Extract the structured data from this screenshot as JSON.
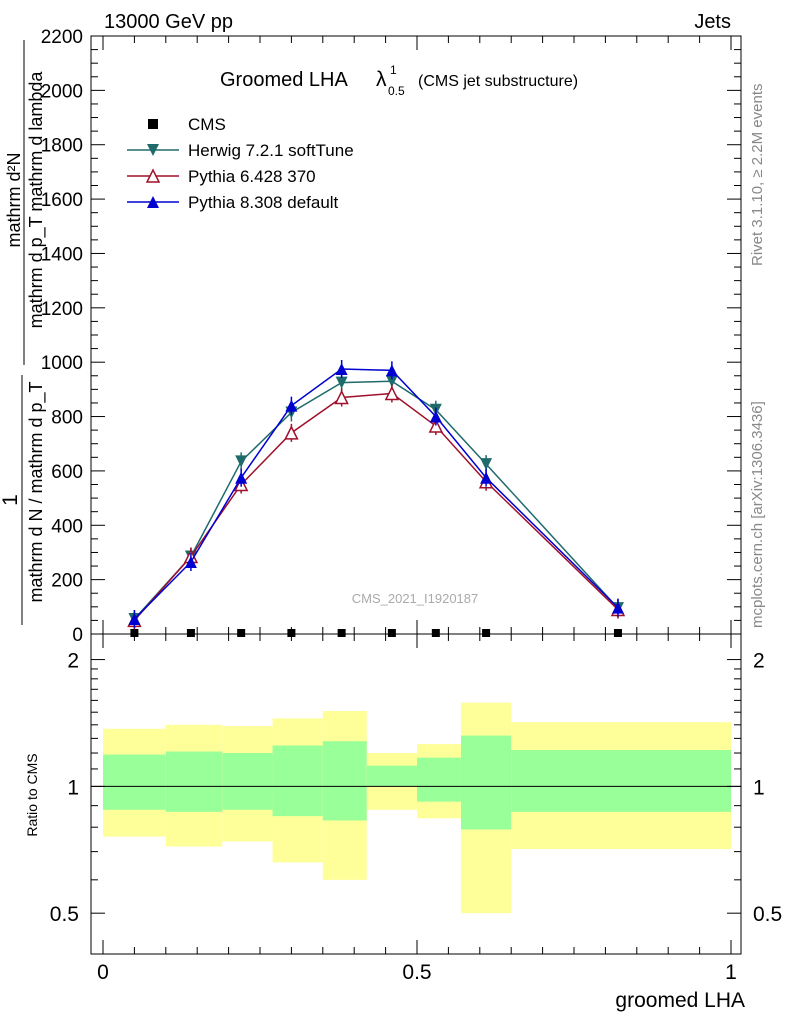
{
  "header": {
    "energy_label": "13000 GeV pp",
    "category_label": "Jets"
  },
  "side_text": {
    "rivet": "Rivet 3.1.10, ≥ 2.2M events",
    "mcplots": "mcplots.cern.ch [arXiv:1306.3436]"
  },
  "chart_data": {
    "type": "line",
    "title": "Groomed LHA",
    "title_symbol": "λ",
    "title_sup": "1",
    "title_sub": "0.5",
    "title_suffix": "(CMS jet substructure)",
    "analysis_id": "CMS_2021_I1920187",
    "xlabel": "groomed LHA",
    "ylabel_main": {
      "numerator_1": "1",
      "denominator_1": "mathrm d N / mathrm d p_T",
      "numerator_2": "mathrm d²N",
      "denominator_2": "mathrm d p_T mathrm d lambda"
    },
    "ylabel_ratio": "Ratio to CMS",
    "xlim": [
      0,
      1
    ],
    "ylim": [
      0,
      2200
    ],
    "ratio_ylim": [
      0.4,
      2.3
    ],
    "x_ticks": [
      0,
      0.5,
      1
    ],
    "x_tick_labels": [
      "0",
      "0.5",
      "1"
    ],
    "y_ticks": [
      0,
      200,
      400,
      600,
      800,
      1000,
      1200,
      1400,
      1600,
      1800,
      2000,
      2200
    ],
    "y_tick_labels": [
      "0",
      "200",
      "400",
      "600",
      "800",
      "1000",
      "1200",
      "1400",
      "1600",
      "1800",
      "2000",
      "2200"
    ],
    "ratio_ticks": [
      0.5,
      1,
      2
    ],
    "ratio_tick_labels": [
      "0.5",
      "1",
      "2"
    ],
    "bin_edges": [
      0,
      0.1,
      0.19,
      0.27,
      0.35,
      0.42,
      0.5,
      0.57,
      0.65,
      1.0
    ],
    "x": [
      0.05,
      0.14,
      0.22,
      0.3,
      0.38,
      0.46,
      0.53,
      0.61,
      0.82
    ],
    "series": [
      {
        "name": "CMS",
        "color": "#000000",
        "marker": "square",
        "values": [
          0,
          0,
          0,
          0,
          0,
          0,
          0,
          0,
          0
        ]
      },
      {
        "name": "Herwig 7.2.1 softTune",
        "color": "#1f6b6b",
        "marker": "triangle-down",
        "values": [
          55,
          285,
          635,
          815,
          925,
          930,
          825,
          625,
          95
        ]
      },
      {
        "name": "Pythia 6.428 370",
        "color": "#a0102a",
        "marker": "triangle-open",
        "values": [
          50,
          285,
          550,
          740,
          870,
          885,
          765,
          560,
          90
        ]
      },
      {
        "name": "Pythia 8.308 default",
        "color": "#0000d0",
        "marker": "triangle-up",
        "values": [
          55,
          265,
          575,
          840,
          975,
          970,
          800,
          575,
          97
        ]
      }
    ],
    "ratio_bands": {
      "green_low": [
        0.88,
        0.87,
        0.88,
        0.85,
        0.83,
        1.0,
        0.92,
        0.79,
        0.87
      ],
      "green_high": [
        1.19,
        1.21,
        1.2,
        1.25,
        1.28,
        1.12,
        1.17,
        1.32,
        1.22
      ],
      "yellow_low": [
        0.76,
        0.72,
        0.74,
        0.66,
        0.6,
        0.88,
        0.84,
        0.5,
        0.71
      ],
      "yellow_high": [
        1.37,
        1.4,
        1.39,
        1.45,
        1.51,
        1.2,
        1.26,
        1.58,
        1.42
      ],
      "green_color": "#99ff99",
      "yellow_color": "#ffff99"
    }
  }
}
